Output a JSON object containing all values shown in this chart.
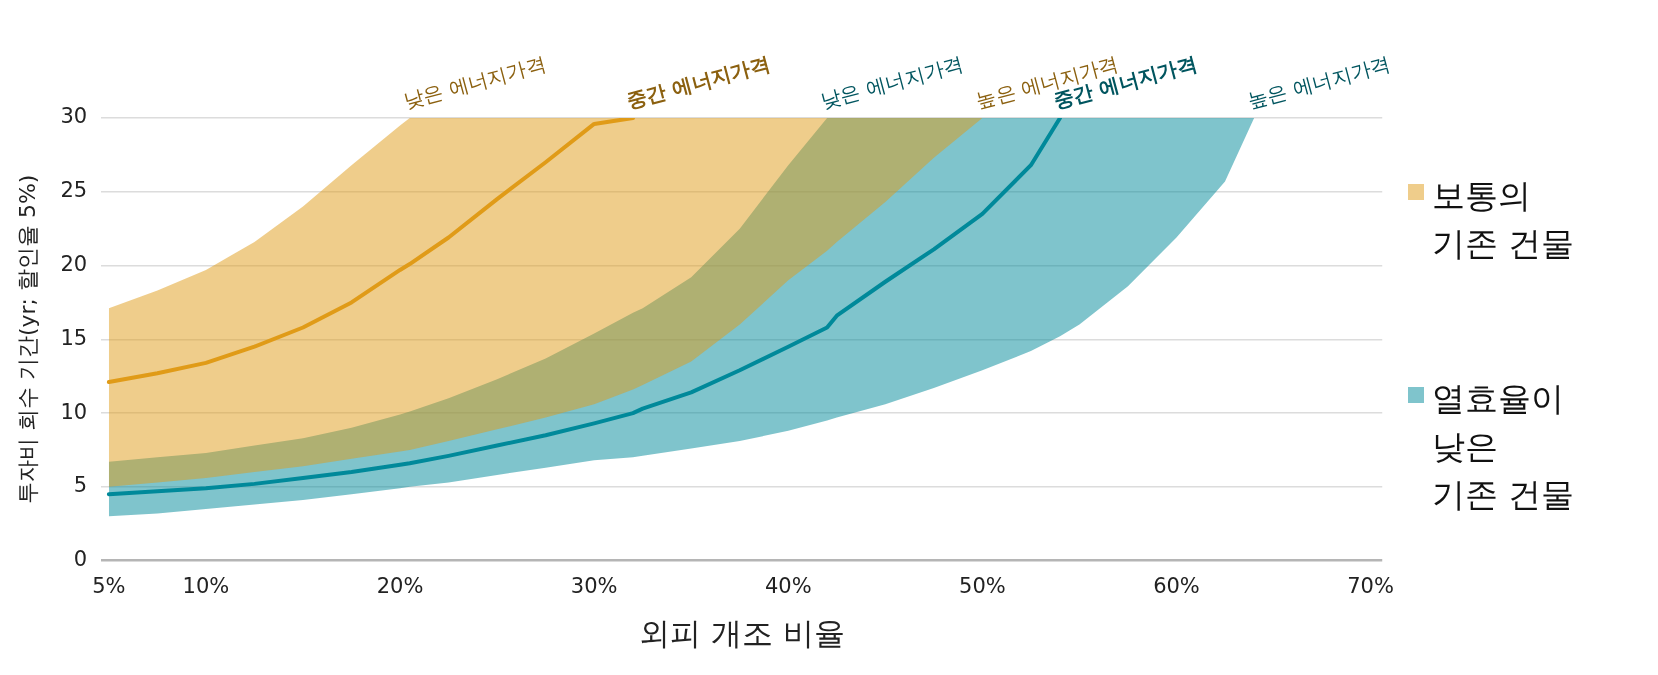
{
  "chart_data": {
    "type": "line",
    "xlabel": "외피 개조 비율",
    "ylabel": "투자비 회수 기간(yr; 할인율 5%)",
    "x": [
      5,
      7.5,
      10,
      12.5,
      15,
      17.5,
      20,
      20.5,
      22.5,
      25,
      27.5,
      30,
      32,
      32.5,
      35,
      37.5,
      40,
      42,
      42.5,
      45,
      47.5,
      50,
      52.5,
      54,
      55,
      57.5,
      60,
      62.5,
      64
    ],
    "xlim": [
      4.6,
      70.6
    ],
    "xticks": [
      {
        "value": 5,
        "label": "5%"
      },
      {
        "value": 10,
        "label": "10%"
      },
      {
        "value": 20,
        "label": "20%"
      },
      {
        "value": 30,
        "label": "30%"
      },
      {
        "value": 40,
        "label": "40%"
      },
      {
        "value": 50,
        "label": "50%"
      },
      {
        "value": 60,
        "label": "60%"
      },
      {
        "value": 70,
        "label": "70%"
      }
    ],
    "ylim": [
      0,
      30
    ],
    "yticks": [
      0,
      5,
      10,
      15,
      20,
      25,
      30
    ],
    "grid": "y",
    "legend": "right",
    "series": [
      {
        "name": "보통의\n기존 건물",
        "color": "#e09b18",
        "values": [
          12.1,
          12.7,
          13.4,
          14.5,
          15.8,
          17.5,
          19.7,
          20.1,
          21.9,
          24.5,
          27.0,
          29.6,
          30,
          null,
          null,
          null,
          null,
          null,
          null,
          null,
          null,
          null,
          null,
          null,
          null,
          null,
          null,
          null,
          null
        ],
        "upper": [
          17.1,
          18.3,
          19.7,
          21.6,
          24.0,
          26.8,
          29.5,
          30,
          30,
          30,
          30,
          30,
          30,
          30,
          30,
          30,
          30,
          30,
          30,
          30,
          30,
          30,
          null,
          null,
          null,
          null,
          null,
          null,
          null
        ],
        "lower": [
          5.0,
          5.3,
          5.6,
          6.0,
          6.4,
          6.9,
          7.4,
          7.5,
          8.1,
          8.9,
          9.7,
          10.6,
          11.6,
          11.9,
          13.5,
          16.0,
          19.0,
          21.0,
          21.6,
          24.3,
          27.3,
          30,
          null,
          null,
          null,
          null,
          null,
          null,
          null
        ]
      },
      {
        "name": "열효율이\n낮은\n기존 건물",
        "color": "#00899a",
        "values": [
          4.5,
          4.7,
          4.9,
          5.2,
          5.6,
          6.0,
          6.5,
          6.6,
          7.1,
          7.8,
          8.5,
          9.3,
          10.0,
          10.3,
          11.4,
          12.9,
          14.5,
          15.8,
          16.6,
          18.9,
          21.1,
          23.5,
          26.8,
          30,
          null,
          null,
          null,
          null,
          null
        ],
        "upper": [
          6.7,
          7.0,
          7.3,
          7.8,
          8.3,
          9.0,
          9.9,
          10.1,
          11.0,
          12.3,
          13.7,
          15.4,
          16.8,
          17.1,
          19.2,
          22.5,
          26.8,
          30,
          30,
          30,
          30,
          30,
          30,
          30,
          30,
          30,
          30,
          30,
          30
        ],
        "lower": [
          3.0,
          3.2,
          3.5,
          3.8,
          4.1,
          4.5,
          4.9,
          5.0,
          5.3,
          5.8,
          6.3,
          6.8,
          7.0,
          7.1,
          7.6,
          8.1,
          8.8,
          9.5,
          9.7,
          10.6,
          11.7,
          12.9,
          14.2,
          15.2,
          16.0,
          18.6,
          21.9,
          25.7,
          30
        ]
      }
    ],
    "annotations": [
      {
        "text": "낮은 에너지가격",
        "x": 20.5,
        "y": 30
      },
      {
        "text": "중간 에너지가격",
        "x": 32,
        "y": 30
      },
      {
        "text": "낮은 에너지가격",
        "x": 42,
        "y": 30
      },
      {
        "text": "높은 에너지가격",
        "x": 50,
        "y": 30
      },
      {
        "text": "중간 에너지가격",
        "x": 54,
        "y": 30
      },
      {
        "text": "높은 에너지가격",
        "x": 64,
        "y": 30
      }
    ]
  }
}
